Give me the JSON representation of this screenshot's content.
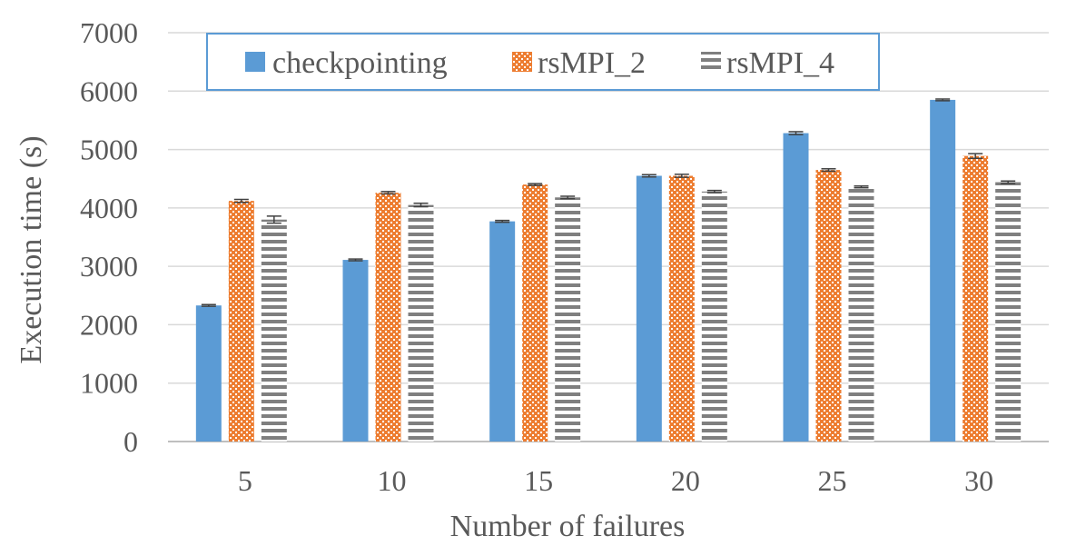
{
  "chart_data": {
    "type": "bar",
    "title": "",
    "xlabel": "Number of failures",
    "ylabel": "Execution time (s)",
    "categories": [
      "5",
      "10",
      "15",
      "20",
      "25",
      "30"
    ],
    "ylim": [
      0,
      7000
    ],
    "yticks": [
      "0",
      "1000",
      "2000",
      "3000",
      "4000",
      "5000",
      "6000",
      "7000"
    ],
    "grid": true,
    "legend_position": "top",
    "series": [
      {
        "name": "checkpointing",
        "values": [
          2330,
          3110,
          3770,
          4550,
          5280,
          5850
        ],
        "errors": [
          15,
          15,
          15,
          20,
          25,
          15
        ],
        "color": "#5B9BD5",
        "pattern": "solid"
      },
      {
        "name": "rsMPI_2",
        "values": [
          4120,
          4260,
          4400,
          4550,
          4650,
          4890
        ],
        "errors": [
          25,
          20,
          15,
          25,
          20,
          40
        ],
        "color": "#ED7D31",
        "pattern": "crosshatch"
      },
      {
        "name": "rsMPI_4",
        "values": [
          3800,
          4050,
          4180,
          4280,
          4360,
          4440
        ],
        "errors": [
          60,
          30,
          20,
          20,
          15,
          20
        ],
        "color": "#7F7F7F",
        "pattern": "horizontal-stripes"
      }
    ]
  }
}
